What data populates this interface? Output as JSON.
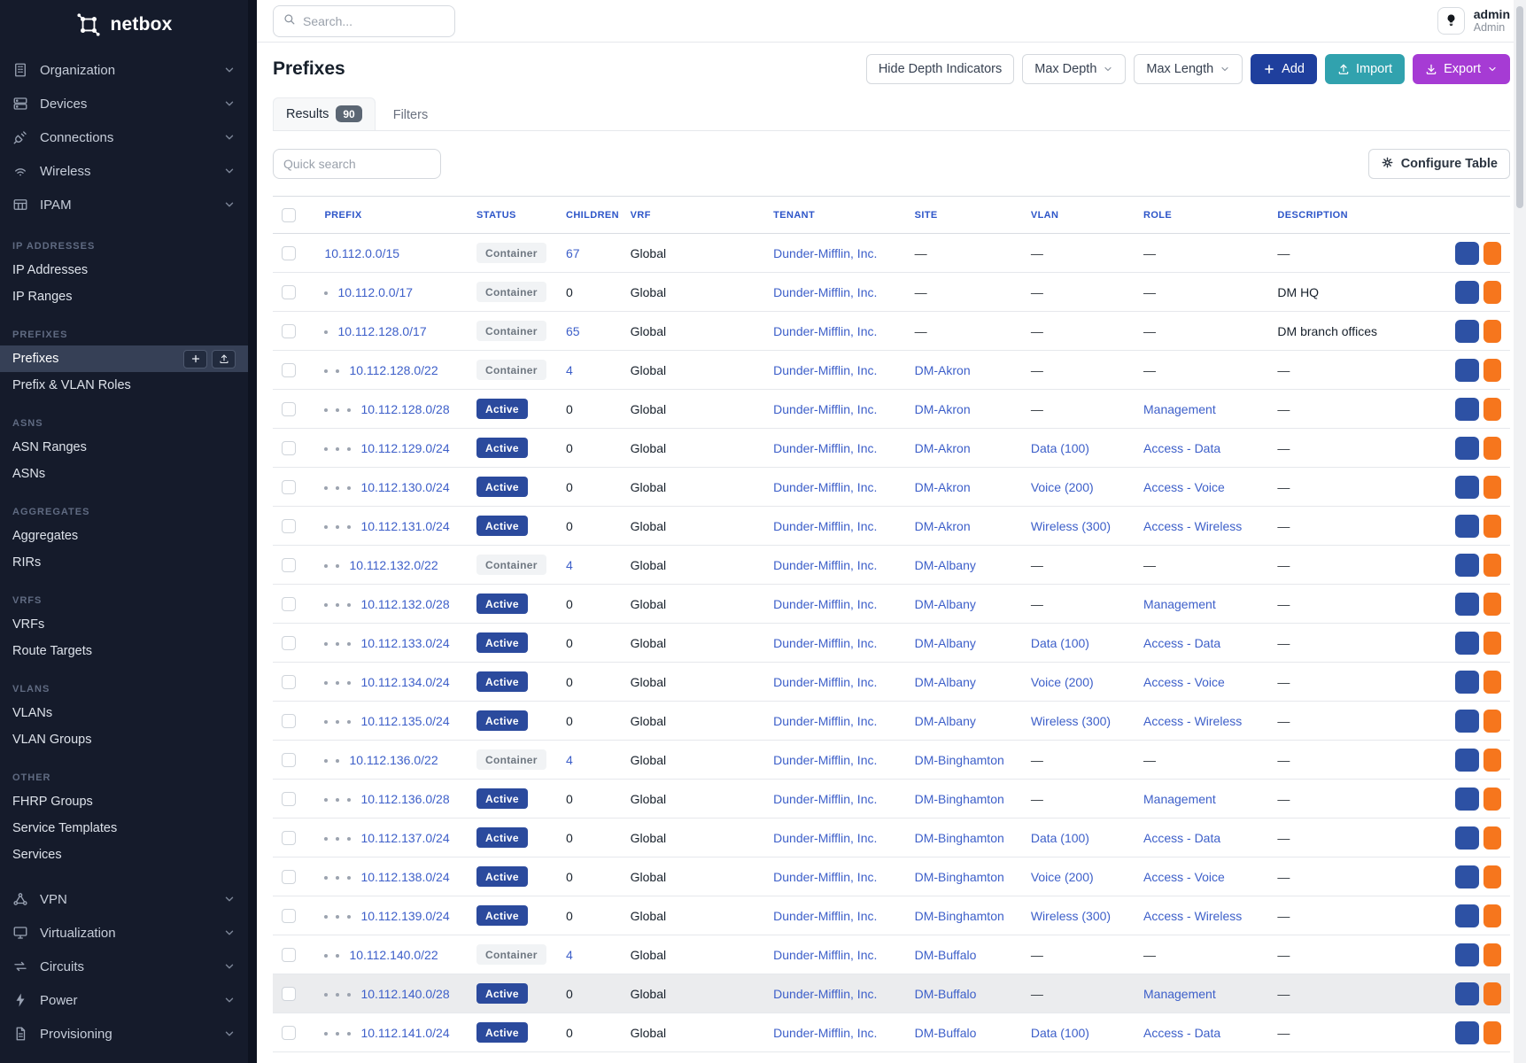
{
  "brand": {
    "name": "netbox"
  },
  "header": {
    "search_placeholder": "Search...",
    "user": {
      "name": "admin",
      "role": "Admin"
    }
  },
  "sidebar": {
    "top_items": [
      {
        "label": "Organization",
        "icon": "building-icon"
      },
      {
        "label": "Devices",
        "icon": "server-icon"
      },
      {
        "label": "Connections",
        "icon": "plug-icon"
      },
      {
        "label": "Wireless",
        "icon": "wifi-icon"
      },
      {
        "label": "IPAM",
        "icon": "grid-icon"
      }
    ],
    "sections": [
      {
        "label": "IP ADDRESSES",
        "items": [
          {
            "label": "IP Addresses"
          },
          {
            "label": "IP Ranges"
          }
        ]
      },
      {
        "label": "PREFIXES",
        "items": [
          {
            "label": "Prefixes",
            "selected": true,
            "actions": [
              "plus-icon",
              "upload-icon"
            ]
          },
          {
            "label": "Prefix & VLAN Roles"
          }
        ]
      },
      {
        "label": "ASNS",
        "items": [
          {
            "label": "ASN Ranges"
          },
          {
            "label": "ASNs"
          }
        ]
      },
      {
        "label": "AGGREGATES",
        "items": [
          {
            "label": "Aggregates"
          },
          {
            "label": "RIRs"
          }
        ]
      },
      {
        "label": "VRFS",
        "items": [
          {
            "label": "VRFs"
          },
          {
            "label": "Route Targets"
          }
        ]
      },
      {
        "label": "VLANS",
        "items": [
          {
            "label": "VLANs"
          },
          {
            "label": "VLAN Groups"
          }
        ]
      },
      {
        "label": "OTHER",
        "items": [
          {
            "label": "FHRP Groups"
          },
          {
            "label": "Service Templates"
          },
          {
            "label": "Services"
          }
        ]
      }
    ],
    "bottom_items": [
      {
        "label": "VPN",
        "icon": "network-icon"
      },
      {
        "label": "Virtualization",
        "icon": "monitor-icon"
      },
      {
        "label": "Circuits",
        "icon": "swap-icon"
      },
      {
        "label": "Power",
        "icon": "bolt-icon"
      },
      {
        "label": "Provisioning",
        "icon": "document-icon"
      }
    ]
  },
  "page": {
    "title": "Prefixes",
    "toolbar": {
      "hide_depth": "Hide Depth Indicators",
      "max_depth": "Max Depth",
      "max_length": "Max Length",
      "add": "Add",
      "import": "Import",
      "export": "Export"
    },
    "tabs": [
      {
        "label": "Results",
        "badge": "90",
        "active": true
      },
      {
        "label": "Filters",
        "active": false
      }
    ],
    "quick_search_placeholder": "Quick search",
    "configure_table": "Configure Table"
  },
  "table": {
    "columns": [
      "PREFIX",
      "STATUS",
      "CHILDREN",
      "VRF",
      "TENANT",
      "SITE",
      "VLAN",
      "ROLE",
      "DESCRIPTION"
    ],
    "rows": [
      {
        "depth": 0,
        "prefix": "10.112.0.0/15",
        "status": "Container",
        "children": "67",
        "children_link": true,
        "vrf": "Global",
        "tenant": "Dunder-Mifflin, Inc.",
        "site": "—",
        "vlan": "—",
        "role": "—",
        "description": "—",
        "highlighted": false
      },
      {
        "depth": 1,
        "prefix": "10.112.0.0/17",
        "status": "Container",
        "children": "0",
        "children_link": false,
        "vrf": "Global",
        "tenant": "Dunder-Mifflin, Inc.",
        "site": "—",
        "vlan": "—",
        "role": "—",
        "description": "DM HQ",
        "highlighted": false
      },
      {
        "depth": 1,
        "prefix": "10.112.128.0/17",
        "status": "Container",
        "children": "65",
        "children_link": true,
        "vrf": "Global",
        "tenant": "Dunder-Mifflin, Inc.",
        "site": "—",
        "vlan": "—",
        "role": "—",
        "description": "DM branch offices",
        "highlighted": false
      },
      {
        "depth": 2,
        "prefix": "10.112.128.0/22",
        "status": "Container",
        "children": "4",
        "children_link": true,
        "vrf": "Global",
        "tenant": "Dunder-Mifflin, Inc.",
        "site": "DM-Akron",
        "vlan": "—",
        "role": "—",
        "description": "—",
        "highlighted": false
      },
      {
        "depth": 3,
        "prefix": "10.112.128.0/28",
        "status": "Active",
        "children": "0",
        "children_link": false,
        "vrf": "Global",
        "tenant": "Dunder-Mifflin, Inc.",
        "site": "DM-Akron",
        "vlan": "—",
        "role": "Management",
        "description": "—",
        "highlighted": false
      },
      {
        "depth": 3,
        "prefix": "10.112.129.0/24",
        "status": "Active",
        "children": "0",
        "children_link": false,
        "vrf": "Global",
        "tenant": "Dunder-Mifflin, Inc.",
        "site": "DM-Akron",
        "vlan": "Data (100)",
        "role": "Access - Data",
        "description": "—",
        "highlighted": false
      },
      {
        "depth": 3,
        "prefix": "10.112.130.0/24",
        "status": "Active",
        "children": "0",
        "children_link": false,
        "vrf": "Global",
        "tenant": "Dunder-Mifflin, Inc.",
        "site": "DM-Akron",
        "vlan": "Voice (200)",
        "role": "Access - Voice",
        "description": "—",
        "highlighted": false
      },
      {
        "depth": 3,
        "prefix": "10.112.131.0/24",
        "status": "Active",
        "children": "0",
        "children_link": false,
        "vrf": "Global",
        "tenant": "Dunder-Mifflin, Inc.",
        "site": "DM-Akron",
        "vlan": "Wireless (300)",
        "role": "Access - Wireless",
        "description": "—",
        "highlighted": false
      },
      {
        "depth": 2,
        "prefix": "10.112.132.0/22",
        "status": "Container",
        "children": "4",
        "children_link": true,
        "vrf": "Global",
        "tenant": "Dunder-Mifflin, Inc.",
        "site": "DM-Albany",
        "vlan": "—",
        "role": "—",
        "description": "—",
        "highlighted": false
      },
      {
        "depth": 3,
        "prefix": "10.112.132.0/28",
        "status": "Active",
        "children": "0",
        "children_link": false,
        "vrf": "Global",
        "tenant": "Dunder-Mifflin, Inc.",
        "site": "DM-Albany",
        "vlan": "—",
        "role": "Management",
        "description": "—",
        "highlighted": false
      },
      {
        "depth": 3,
        "prefix": "10.112.133.0/24",
        "status": "Active",
        "children": "0",
        "children_link": false,
        "vrf": "Global",
        "tenant": "Dunder-Mifflin, Inc.",
        "site": "DM-Albany",
        "vlan": "Data (100)",
        "role": "Access - Data",
        "description": "—",
        "highlighted": false
      },
      {
        "depth": 3,
        "prefix": "10.112.134.0/24",
        "status": "Active",
        "children": "0",
        "children_link": false,
        "vrf": "Global",
        "tenant": "Dunder-Mifflin, Inc.",
        "site": "DM-Albany",
        "vlan": "Voice (200)",
        "role": "Access - Voice",
        "description": "—",
        "highlighted": false
      },
      {
        "depth": 3,
        "prefix": "10.112.135.0/24",
        "status": "Active",
        "children": "0",
        "children_link": false,
        "vrf": "Global",
        "tenant": "Dunder-Mifflin, Inc.",
        "site": "DM-Albany",
        "vlan": "Wireless (300)",
        "role": "Access - Wireless",
        "description": "—",
        "highlighted": false
      },
      {
        "depth": 2,
        "prefix": "10.112.136.0/22",
        "status": "Container",
        "children": "4",
        "children_link": true,
        "vrf": "Global",
        "tenant": "Dunder-Mifflin, Inc.",
        "site": "DM-Binghamton",
        "vlan": "—",
        "role": "—",
        "description": "—",
        "highlighted": false
      },
      {
        "depth": 3,
        "prefix": "10.112.136.0/28",
        "status": "Active",
        "children": "0",
        "children_link": false,
        "vrf": "Global",
        "tenant": "Dunder-Mifflin, Inc.",
        "site": "DM-Binghamton",
        "vlan": "—",
        "role": "Management",
        "description": "—",
        "highlighted": false
      },
      {
        "depth": 3,
        "prefix": "10.112.137.0/24",
        "status": "Active",
        "children": "0",
        "children_link": false,
        "vrf": "Global",
        "tenant": "Dunder-Mifflin, Inc.",
        "site": "DM-Binghamton",
        "vlan": "Data (100)",
        "role": "Access - Data",
        "description": "—",
        "highlighted": false
      },
      {
        "depth": 3,
        "prefix": "10.112.138.0/24",
        "status": "Active",
        "children": "0",
        "children_link": false,
        "vrf": "Global",
        "tenant": "Dunder-Mifflin, Inc.",
        "site": "DM-Binghamton",
        "vlan": "Voice (200)",
        "role": "Access - Voice",
        "description": "—",
        "highlighted": false
      },
      {
        "depth": 3,
        "prefix": "10.112.139.0/24",
        "status": "Active",
        "children": "0",
        "children_link": false,
        "vrf": "Global",
        "tenant": "Dunder-Mifflin, Inc.",
        "site": "DM-Binghamton",
        "vlan": "Wireless (300)",
        "role": "Access - Wireless",
        "description": "—",
        "highlighted": false
      },
      {
        "depth": 2,
        "prefix": "10.112.140.0/22",
        "status": "Container",
        "children": "4",
        "children_link": true,
        "vrf": "Global",
        "tenant": "Dunder-Mifflin, Inc.",
        "site": "DM-Buffalo",
        "vlan": "—",
        "role": "—",
        "description": "—",
        "highlighted": false
      },
      {
        "depth": 3,
        "prefix": "10.112.140.0/28",
        "status": "Active",
        "children": "0",
        "children_link": false,
        "vrf": "Global",
        "tenant": "Dunder-Mifflin, Inc.",
        "site": "DM-Buffalo",
        "vlan": "—",
        "role": "Management",
        "description": "—",
        "highlighted": true
      },
      {
        "depth": 3,
        "prefix": "10.112.141.0/24",
        "status": "Active",
        "children": "0",
        "children_link": false,
        "vrf": "Global",
        "tenant": "Dunder-Mifflin, Inc.",
        "site": "DM-Buffalo",
        "vlan": "Data (100)",
        "role": "Access - Data",
        "description": "—",
        "highlighted": false
      }
    ]
  },
  "colors": {
    "link": "#3d5fc9",
    "active_badge": "#2b4a9d",
    "add_button": "#1f3f9d",
    "import_button": "#31a2ae",
    "export_button": "#a63bd4",
    "edit_button": "#f6761d",
    "copy_button": "#2d51a4",
    "sidebar_bg": "#151b2b"
  }
}
